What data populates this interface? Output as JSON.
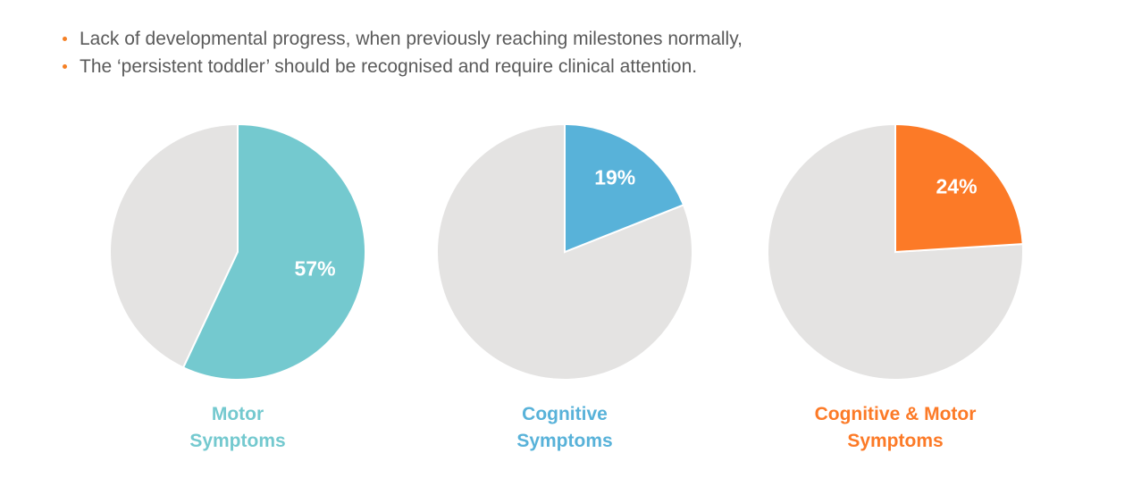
{
  "bullets": [
    "Lack of developmental progress, when previously reaching milestones normally,",
    "The ‘persistent toddler’ should be recognised and require clinical attention."
  ],
  "colors": {
    "bullet": "#f58025",
    "remainder": "#e4e3e2",
    "text": "#5a5a5a"
  },
  "chart_data": [
    {
      "type": "pie",
      "label_line1": "Motor",
      "label_line2": "Symptoms",
      "value": 57,
      "value_label": "57%",
      "color": "#74c9cf"
    },
    {
      "type": "pie",
      "label_line1": "Cognitive",
      "label_line2": "Symptoms",
      "value": 19,
      "value_label": "19%",
      "color": "#58b2d9"
    },
    {
      "type": "pie",
      "label_line1": "Cognitive & Motor",
      "label_line2": "Symptoms",
      "value": 24,
      "value_label": "24%",
      "color": "#fc7a27"
    }
  ]
}
